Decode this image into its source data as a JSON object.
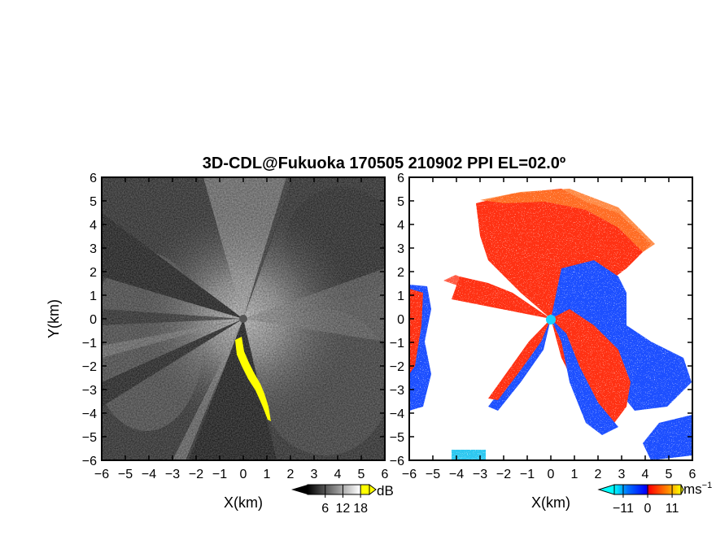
{
  "figure": {
    "title": "3D-CDL@Fukuoka 170505 210902 PPI EL=02.0º"
  },
  "chart_data": [
    {
      "type": "heatmap",
      "variable": "reflectivity (grayscale)",
      "xlabel": "X(km)",
      "ylabel": "Y(km)",
      "xlim": [
        -6,
        6
      ],
      "ylim": [
        -6,
        6
      ],
      "x_ticks": [
        "−6",
        "−5",
        "−4",
        "−3",
        "−2",
        "−1",
        "0",
        "1",
        "2",
        "3",
        "4",
        "5",
        "6"
      ],
      "y_ticks": [
        "6",
        "5",
        "4",
        "3",
        "2",
        "1",
        "0",
        "−1",
        "−2",
        "−3",
        "−4",
        "−5",
        "−6"
      ],
      "x_tick_values": [
        -6,
        -5,
        -4,
        -3,
        -2,
        -1,
        0,
        1,
        2,
        3,
        4,
        5,
        6
      ],
      "y_tick_values": [
        6,
        5,
        4,
        3,
        2,
        1,
        0,
        -1,
        -2,
        -3,
        -4,
        -5,
        -6
      ],
      "colorbar": {
        "unit": "dB",
        "ticks": [
          "6",
          "12",
          "18"
        ],
        "tick_values": [
          6,
          12,
          18
        ],
        "range": [
          0,
          21
        ],
        "colors": [
          "#000000",
          "#ffffff",
          "#ffff00"
        ]
      }
    },
    {
      "type": "heatmap",
      "variable": "radial velocity",
      "xlabel": "X(km)",
      "xlim": [
        -6,
        6
      ],
      "ylim": [
        -6,
        6
      ],
      "x_ticks": [
        "−6",
        "−5",
        "−4",
        "−3",
        "−2",
        "−1",
        "0",
        "1",
        "2",
        "3",
        "4",
        "5",
        "6"
      ],
      "y_ticks": [
        "6",
        "5",
        "4",
        "3",
        "2",
        "1",
        "0",
        "−1",
        "−2",
        "−3",
        "−4",
        "−5",
        "−6"
      ],
      "x_tick_values": [
        -6,
        -5,
        -4,
        -3,
        -2,
        -1,
        0,
        1,
        2,
        3,
        4,
        5,
        6
      ],
      "y_tick_values": [
        6,
        5,
        4,
        3,
        2,
        1,
        0,
        -1,
        -2,
        -3,
        -4,
        -5,
        -6
      ],
      "colorbar": {
        "unit": "ms",
        "unit_exp": "−1",
        "ticks": [
          "−11",
          "0",
          "11"
        ],
        "tick_values": [
          -11,
          0,
          11
        ],
        "range": [
          -15,
          15
        ],
        "colors": [
          "#00ffff",
          "#0000ff",
          "#ff0000",
          "#ff8800",
          "#ffff00"
        ]
      }
    }
  ],
  "colors": {
    "negative_velocity": "#1e50ff",
    "positive_velocity": "#ff3214",
    "outer_positive": "#ff7828",
    "light_blue": "#2ec8f0",
    "radar_marker_left": "#555555",
    "radar_marker_right": "#19d2ff",
    "yellow": "#ffff00"
  }
}
